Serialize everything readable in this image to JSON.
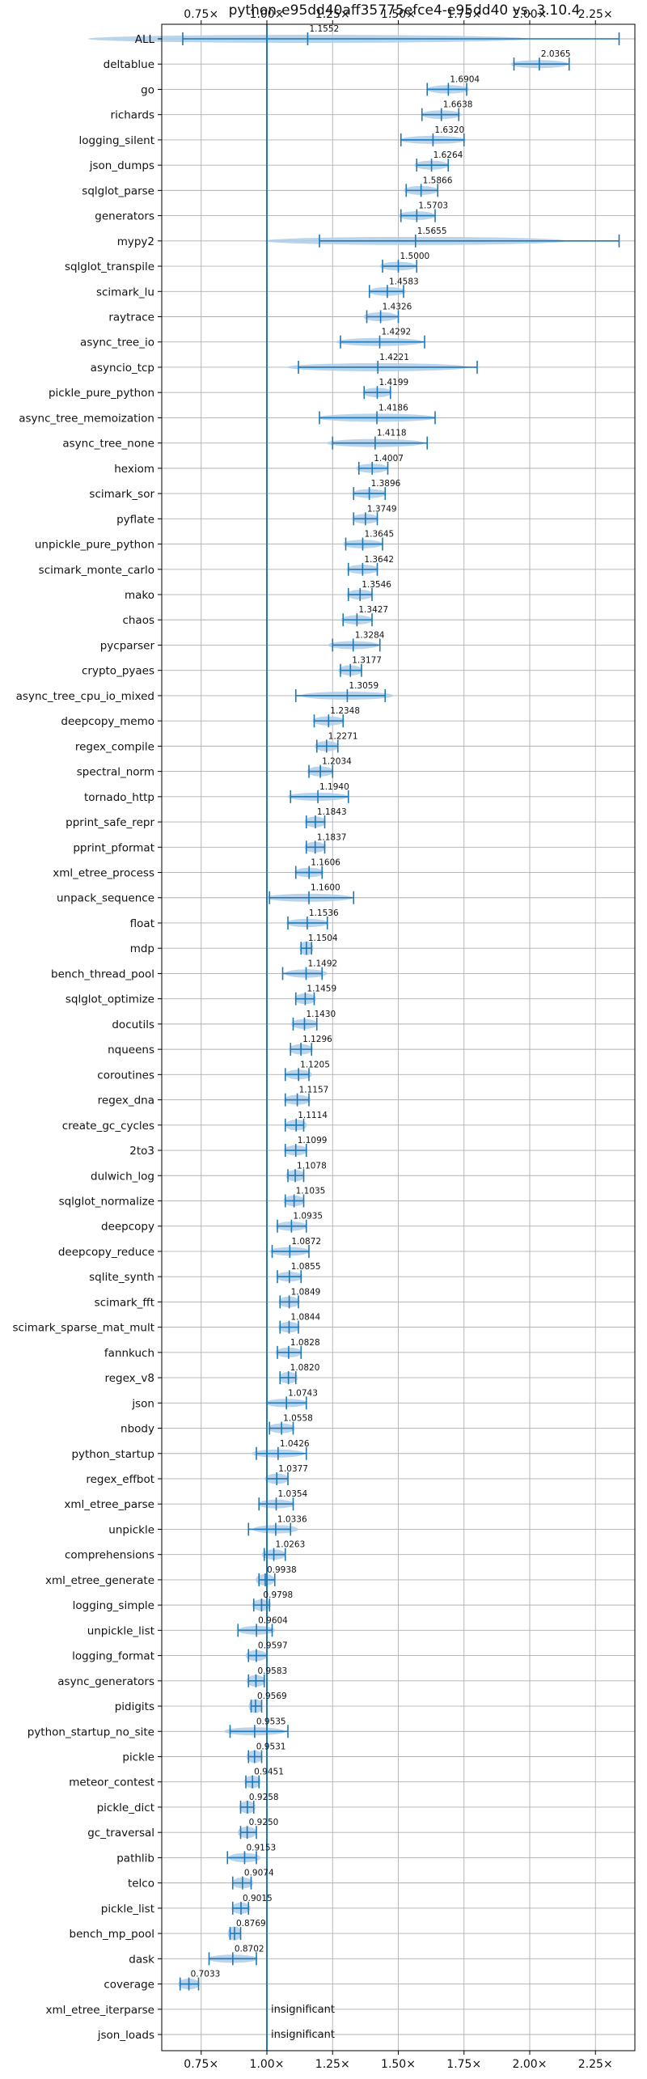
{
  "chart_data": {
    "type": "violin",
    "orientation": "horizontal",
    "title": "python-e95dd40aff35775efce4-e95dd40 vs. 3.10.4",
    "xlabel": "",
    "ylabel": "",
    "xlim": [
      0.6,
      2.4
    ],
    "reference_line": 1.0,
    "grid": true,
    "xticks": [
      0.75,
      1.0,
      1.25,
      1.5,
      1.75,
      2.0,
      2.25
    ],
    "xtick_labels": [
      "0.75×",
      "1.00×",
      "1.25×",
      "1.50×",
      "1.75×",
      "2.00×",
      "2.25×"
    ],
    "colors": {
      "violin": "#aecde9",
      "line": "#1f77b4",
      "grid": "#b0b0b0"
    },
    "series": [
      {
        "name": "ALL",
        "value": 1.1552,
        "label": "1.1552",
        "min": 0.68,
        "max": 2.34
      },
      {
        "name": "deltablue",
        "value": 2.0365,
        "label": "2.0365",
        "min": 1.94,
        "max": 2.15
      },
      {
        "name": "go",
        "value": 1.6904,
        "label": "1.6904",
        "min": 1.61,
        "max": 1.76
      },
      {
        "name": "richards",
        "value": 1.6638,
        "label": "1.6638",
        "min": 1.59,
        "max": 1.73
      },
      {
        "name": "logging_silent",
        "value": 1.632,
        "label": "1.6320",
        "min": 1.51,
        "max": 1.75
      },
      {
        "name": "json_dumps",
        "value": 1.6264,
        "label": "1.6264",
        "min": 1.57,
        "max": 1.69
      },
      {
        "name": "sqlglot_parse",
        "value": 1.5866,
        "label": "1.5866",
        "min": 1.53,
        "max": 1.65
      },
      {
        "name": "generators",
        "value": 1.5703,
        "label": "1.5703",
        "min": 1.51,
        "max": 1.64
      },
      {
        "name": "mypy2",
        "value": 1.5655,
        "label": "1.5655",
        "min": 1.2,
        "max": 2.34
      },
      {
        "name": "sqlglot_transpile",
        "value": 1.5,
        "label": "1.5000",
        "min": 1.44,
        "max": 1.57
      },
      {
        "name": "scimark_lu",
        "value": 1.4583,
        "label": "1.4583",
        "min": 1.39,
        "max": 1.52
      },
      {
        "name": "raytrace",
        "value": 1.4326,
        "label": "1.4326",
        "min": 1.38,
        "max": 1.5
      },
      {
        "name": "async_tree_io",
        "value": 1.4292,
        "label": "1.4292",
        "min": 1.28,
        "max": 1.6
      },
      {
        "name": "asyncio_tcp",
        "value": 1.4221,
        "label": "1.4221",
        "min": 1.12,
        "max": 1.8
      },
      {
        "name": "pickle_pure_python",
        "value": 1.4199,
        "label": "1.4199",
        "min": 1.37,
        "max": 1.47
      },
      {
        "name": "async_tree_memoization",
        "value": 1.4186,
        "label": "1.4186",
        "min": 1.2,
        "max": 1.64
      },
      {
        "name": "async_tree_none",
        "value": 1.4118,
        "label": "1.4118",
        "min": 1.25,
        "max": 1.61
      },
      {
        "name": "hexiom",
        "value": 1.4007,
        "label": "1.4007",
        "min": 1.35,
        "max": 1.46
      },
      {
        "name": "scimark_sor",
        "value": 1.3896,
        "label": "1.3896",
        "min": 1.33,
        "max": 1.45
      },
      {
        "name": "pyflate",
        "value": 1.3749,
        "label": "1.3749",
        "min": 1.33,
        "max": 1.42
      },
      {
        "name": "unpickle_pure_python",
        "value": 1.3645,
        "label": "1.3645",
        "min": 1.3,
        "max": 1.44
      },
      {
        "name": "scimark_monte_carlo",
        "value": 1.3642,
        "label": "1.3642",
        "min": 1.31,
        "max": 1.42
      },
      {
        "name": "mako",
        "value": 1.3546,
        "label": "1.3546",
        "min": 1.31,
        "max": 1.4
      },
      {
        "name": "chaos",
        "value": 1.3427,
        "label": "1.3427",
        "min": 1.29,
        "max": 1.4
      },
      {
        "name": "pycparser",
        "value": 1.3284,
        "label": "1.3284",
        "min": 1.25,
        "max": 1.43
      },
      {
        "name": "crypto_pyaes",
        "value": 1.3177,
        "label": "1.3177",
        "min": 1.28,
        "max": 1.36
      },
      {
        "name": "async_tree_cpu_io_mixed",
        "value": 1.3059,
        "label": "1.3059",
        "min": 1.11,
        "max": 1.45
      },
      {
        "name": "deepcopy_memo",
        "value": 1.2348,
        "label": "1.2348",
        "min": 1.18,
        "max": 1.29
      },
      {
        "name": "regex_compile",
        "value": 1.2271,
        "label": "1.2271",
        "min": 1.19,
        "max": 1.27
      },
      {
        "name": "spectral_norm",
        "value": 1.2034,
        "label": "1.2034",
        "min": 1.16,
        "max": 1.25
      },
      {
        "name": "tornado_http",
        "value": 1.194,
        "label": "1.1940",
        "min": 1.09,
        "max": 1.31
      },
      {
        "name": "pprint_safe_repr",
        "value": 1.1843,
        "label": "1.1843",
        "min": 1.15,
        "max": 1.22
      },
      {
        "name": "pprint_pformat",
        "value": 1.1837,
        "label": "1.1837",
        "min": 1.15,
        "max": 1.22
      },
      {
        "name": "xml_etree_process",
        "value": 1.1606,
        "label": "1.1606",
        "min": 1.11,
        "max": 1.21
      },
      {
        "name": "unpack_sequence",
        "value": 1.16,
        "label": "1.1600",
        "min": 1.01,
        "max": 1.33
      },
      {
        "name": "float",
        "value": 1.1536,
        "label": "1.1536",
        "min": 1.08,
        "max": 1.23
      },
      {
        "name": "mdp",
        "value": 1.1504,
        "label": "1.1504",
        "min": 1.13,
        "max": 1.17
      },
      {
        "name": "bench_thread_pool",
        "value": 1.1492,
        "label": "1.1492",
        "min": 1.06,
        "max": 1.21
      },
      {
        "name": "sqlglot_optimize",
        "value": 1.1459,
        "label": "1.1459",
        "min": 1.11,
        "max": 1.18
      },
      {
        "name": "docutils",
        "value": 1.143,
        "label": "1.1430",
        "min": 1.1,
        "max": 1.19
      },
      {
        "name": "nqueens",
        "value": 1.1296,
        "label": "1.1296",
        "min": 1.09,
        "max": 1.17
      },
      {
        "name": "coroutines",
        "value": 1.1205,
        "label": "1.1205",
        "min": 1.07,
        "max": 1.16
      },
      {
        "name": "regex_dna",
        "value": 1.1157,
        "label": "1.1157",
        "min": 1.07,
        "max": 1.16
      },
      {
        "name": "create_gc_cycles",
        "value": 1.1114,
        "label": "1.1114",
        "min": 1.07,
        "max": 1.14
      },
      {
        "name": "2to3",
        "value": 1.1099,
        "label": "1.1099",
        "min": 1.07,
        "max": 1.15
      },
      {
        "name": "dulwich_log",
        "value": 1.1078,
        "label": "1.1078",
        "min": 1.08,
        "max": 1.14
      },
      {
        "name": "sqlglot_normalize",
        "value": 1.1035,
        "label": "1.1035",
        "min": 1.07,
        "max": 1.14
      },
      {
        "name": "deepcopy",
        "value": 1.0935,
        "label": "1.0935",
        "min": 1.04,
        "max": 1.15
      },
      {
        "name": "deepcopy_reduce",
        "value": 1.0872,
        "label": "1.0872",
        "min": 1.02,
        "max": 1.16
      },
      {
        "name": "sqlite_synth",
        "value": 1.0855,
        "label": "1.0855",
        "min": 1.04,
        "max": 1.13
      },
      {
        "name": "scimark_fft",
        "value": 1.0849,
        "label": "1.0849",
        "min": 1.05,
        "max": 1.12
      },
      {
        "name": "scimark_sparse_mat_mult",
        "value": 1.0844,
        "label": "1.0844",
        "min": 1.05,
        "max": 1.12
      },
      {
        "name": "fannkuch",
        "value": 1.0828,
        "label": "1.0828",
        "min": 1.04,
        "max": 1.13
      },
      {
        "name": "regex_v8",
        "value": 1.082,
        "label": "1.0820",
        "min": 1.05,
        "max": 1.11
      },
      {
        "name": "json",
        "value": 1.0743,
        "label": "1.0743",
        "min": 1.0,
        "max": 1.15
      },
      {
        "name": "nbody",
        "value": 1.0558,
        "label": "1.0558",
        "min": 1.01,
        "max": 1.1
      },
      {
        "name": "python_startup",
        "value": 1.0426,
        "label": "1.0426",
        "min": 0.96,
        "max": 1.15
      },
      {
        "name": "regex_effbot",
        "value": 1.0377,
        "label": "1.0377",
        "min": 1.0,
        "max": 1.08
      },
      {
        "name": "xml_etree_parse",
        "value": 1.0354,
        "label": "1.0354",
        "min": 0.97,
        "max": 1.1
      },
      {
        "name": "unpickle",
        "value": 1.0336,
        "label": "1.0336",
        "min": 0.93,
        "max": 1.09
      },
      {
        "name": "comprehensions",
        "value": 1.0263,
        "label": "1.0263",
        "min": 0.99,
        "max": 1.07
      },
      {
        "name": "xml_etree_generate",
        "value": 0.9938,
        "label": "0.9938",
        "min": 0.97,
        "max": 1.03
      },
      {
        "name": "logging_simple",
        "value": 0.9798,
        "label": "0.9798",
        "min": 0.95,
        "max": 1.01
      },
      {
        "name": "unpickle_list",
        "value": 0.9604,
        "label": "0.9604",
        "min": 0.89,
        "max": 1.02
      },
      {
        "name": "logging_format",
        "value": 0.9597,
        "label": "0.9597",
        "min": 0.93,
        "max": 1.0
      },
      {
        "name": "async_generators",
        "value": 0.9583,
        "label": "0.9583",
        "min": 0.93,
        "max": 0.99
      },
      {
        "name": "pidigits",
        "value": 0.9569,
        "label": "0.9569",
        "min": 0.94,
        "max": 0.98
      },
      {
        "name": "python_startup_no_site",
        "value": 0.9535,
        "label": "0.9535",
        "min": 0.86,
        "max": 1.08
      },
      {
        "name": "pickle",
        "value": 0.9531,
        "label": "0.9531",
        "min": 0.93,
        "max": 0.98
      },
      {
        "name": "meteor_contest",
        "value": 0.9451,
        "label": "0.9451",
        "min": 0.92,
        "max": 0.97
      },
      {
        "name": "pickle_dict",
        "value": 0.9258,
        "label": "0.9258",
        "min": 0.9,
        "max": 0.95
      },
      {
        "name": "gc_traversal",
        "value": 0.925,
        "label": "0.9250",
        "min": 0.9,
        "max": 0.96
      },
      {
        "name": "pathlib",
        "value": 0.9153,
        "label": "0.9153",
        "min": 0.85,
        "max": 0.96
      },
      {
        "name": "telco",
        "value": 0.9074,
        "label": "0.9074",
        "min": 0.87,
        "max": 0.94
      },
      {
        "name": "pickle_list",
        "value": 0.9015,
        "label": "0.9015",
        "min": 0.87,
        "max": 0.93
      },
      {
        "name": "bench_mp_pool",
        "value": 0.8769,
        "label": "0.8769",
        "min": 0.86,
        "max": 0.9
      },
      {
        "name": "dask",
        "value": 0.8702,
        "label": "0.8702",
        "min": 0.78,
        "max": 0.96
      },
      {
        "name": "coverage",
        "value": 0.7033,
        "label": "0.7033",
        "min": 0.67,
        "max": 0.74
      },
      {
        "name": "xml_etree_iterparse",
        "value": null,
        "label": "insignificant"
      },
      {
        "name": "json_loads",
        "value": null,
        "label": "insignificant"
      }
    ]
  }
}
